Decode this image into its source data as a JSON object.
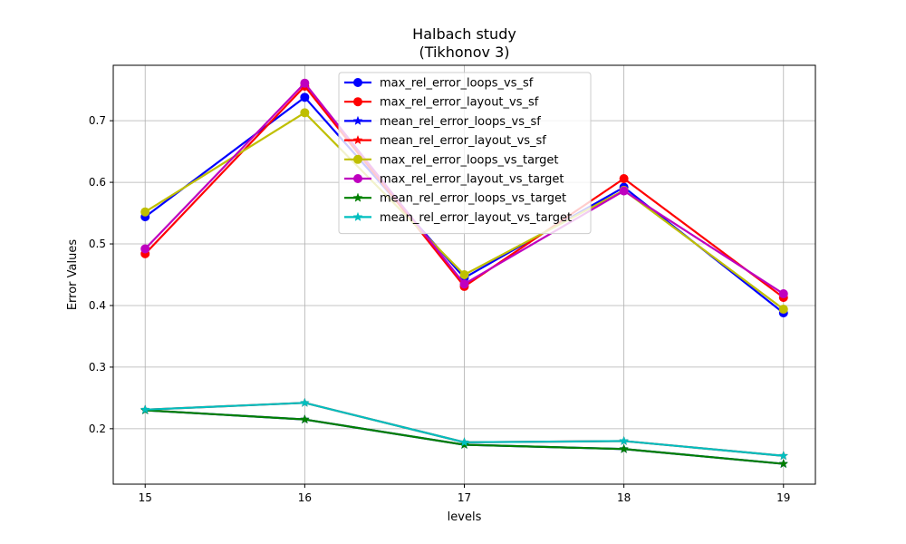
{
  "chart_data": {
    "type": "line",
    "title": "Halbach study",
    "subtitle": "(Tikhonov 3)",
    "xlabel": "levels",
    "ylabel": "Error Values",
    "x": [
      15,
      16,
      17,
      18,
      19
    ],
    "xlim": [
      14.8,
      19.2
    ],
    "ylim": [
      0.11,
      0.79
    ],
    "xticks": [
      15,
      16,
      17,
      18,
      19
    ],
    "yticks": [
      0.2,
      0.3,
      0.4,
      0.5,
      0.6,
      0.7
    ],
    "grid": true,
    "legend_position": "top-center",
    "series": [
      {
        "name": "max_rel_error_loops_vs_sf",
        "values": [
          0.544,
          0.738,
          0.445,
          0.592,
          0.388
        ],
        "color": "#0000ff",
        "marker": "circle"
      },
      {
        "name": "max_rel_error_layout_vs_sf",
        "values": [
          0.484,
          0.756,
          0.431,
          0.606,
          0.413
        ],
        "color": "#ff0000",
        "marker": "circle"
      },
      {
        "name": "mean_rel_error_loops_vs_sf",
        "values": [
          0.23,
          0.215,
          0.174,
          0.167,
          0.143
        ],
        "color": "#0000ff",
        "marker": "star"
      },
      {
        "name": "mean_rel_error_layout_vs_sf",
        "values": [
          0.231,
          0.242,
          0.178,
          0.18,
          0.156
        ],
        "color": "#ff0000",
        "marker": "star"
      },
      {
        "name": "max_rel_error_loops_vs_target",
        "values": [
          0.552,
          0.713,
          0.45,
          0.587,
          0.394
        ],
        "color": "#bfbf00",
        "marker": "circle"
      },
      {
        "name": "max_rel_error_layout_vs_target",
        "values": [
          0.492,
          0.761,
          0.435,
          0.586,
          0.419
        ],
        "color": "#bf00bf",
        "marker": "circle"
      },
      {
        "name": "mean_rel_error_loops_vs_target",
        "values": [
          0.23,
          0.215,
          0.174,
          0.167,
          0.143
        ],
        "color": "#008000",
        "marker": "star"
      },
      {
        "name": "mean_rel_error_layout_vs_target",
        "values": [
          0.231,
          0.242,
          0.178,
          0.18,
          0.156
        ],
        "color": "#00bfbf",
        "marker": "star"
      }
    ]
  }
}
